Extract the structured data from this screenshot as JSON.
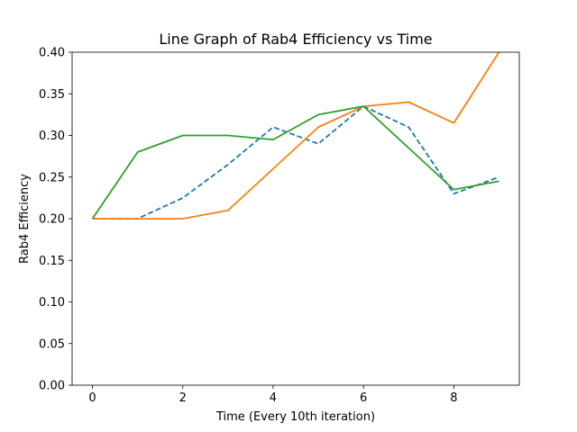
{
  "chart_data": {
    "type": "line",
    "title": "Line Graph of Rab4 Efficiency vs Time",
    "xlabel": "Time (Every 10th iteration)",
    "ylabel": "Rab4 Efficiency",
    "xlim": [
      -0.45,
      9.45
    ],
    "ylim": [
      0.0,
      0.4
    ],
    "x_ticks": [
      0,
      2,
      4,
      6,
      8
    ],
    "x_tick_labels": [
      "0",
      "2",
      "4",
      "6",
      "8"
    ],
    "y_ticks": [
      0.0,
      0.05,
      0.1,
      0.15,
      0.2,
      0.25,
      0.3,
      0.35,
      0.4
    ],
    "y_tick_labels": [
      "0.00",
      "0.05",
      "0.10",
      "0.15",
      "0.20",
      "0.25",
      "0.30",
      "0.35",
      "0.40"
    ],
    "grid": false,
    "x": [
      0,
      1,
      2,
      3,
      4,
      5,
      6,
      7,
      8,
      9
    ],
    "series": [
      {
        "values": [
          0.2,
          0.2,
          0.225,
          0.265,
          0.31,
          0.29,
          0.335,
          0.31,
          0.23,
          0.25
        ],
        "color": "#1f77b4",
        "dash": "dashed"
      },
      {
        "values": [
          0.2,
          0.2,
          0.2,
          0.21,
          0.26,
          0.31,
          0.335,
          0.34,
          0.315,
          0.4
        ],
        "color": "#ff7f0e",
        "dash": "solid"
      },
      {
        "values": [
          0.2,
          0.28,
          0.3,
          0.3,
          0.295,
          0.325,
          0.335,
          0.285,
          0.235,
          0.245
        ],
        "color": "#2ca02c",
        "dash": "solid"
      }
    ]
  }
}
